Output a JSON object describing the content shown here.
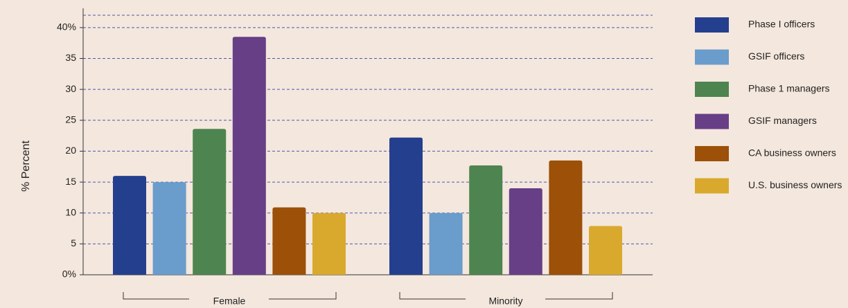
{
  "chart_data": {
    "type": "bar",
    "y_label": "% Percent",
    "categories": [
      "Female",
      "Minority"
    ],
    "series": [
      {
        "name": "Phase I officers",
        "color": "#253f8f",
        "values": [
          16,
          22.2
        ]
      },
      {
        "name": "GSIF officers",
        "color": "#6a9ccc",
        "values": [
          15,
          10
        ]
      },
      {
        "name": "Phase 1 managers",
        "color": "#4e8450",
        "values": [
          23.6,
          17.7
        ]
      },
      {
        "name": "GSIF managers",
        "color": "#673f87",
        "values": [
          38.5,
          14
        ]
      },
      {
        "name": "CA business owners",
        "color": "#9c5008",
        "values": [
          10.9,
          18.5
        ]
      },
      {
        "name": "U.S. business owners",
        "color": "#d9a92e",
        "values": [
          10,
          7.9
        ]
      }
    ],
    "ylim": [
      0,
      42
    ],
    "yticks": [
      {
        "value": 0,
        "label": "0%"
      },
      5,
      10,
      15,
      20,
      25,
      30,
      35,
      {
        "value": 40,
        "label": "40%"
      }
    ],
    "grid": true,
    "legend": "right"
  }
}
